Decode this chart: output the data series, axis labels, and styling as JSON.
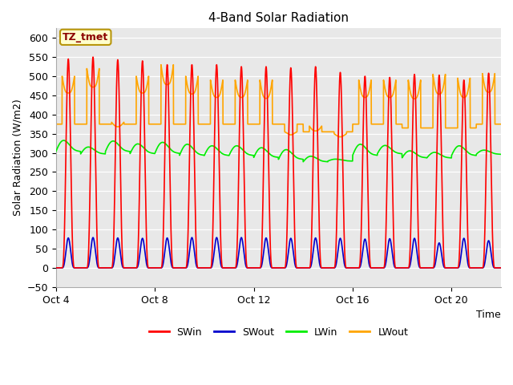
{
  "title": "4-Band Solar Radiation",
  "xlabel": "Time",
  "ylabel": "Solar Radiation (W/m2)",
  "ylim": [
    -50,
    625
  ],
  "yticks": [
    -50,
    0,
    50,
    100,
    150,
    200,
    250,
    300,
    350,
    400,
    450,
    500,
    550,
    600
  ],
  "plot_bg": "#e8e8e8",
  "fig_bg": "#ffffff",
  "annotation_text": "TZ_tmet",
  "annotation_color": "#8B0000",
  "annotation_bg": "#ffffcc",
  "annotation_border": "#b8960b",
  "legend_items": [
    "SWin",
    "SWout",
    "LWin",
    "LWout"
  ],
  "legend_colors": [
    "#ff0000",
    "#0000cc",
    "#00ee00",
    "#ffa500"
  ],
  "title_fontsize": 11,
  "axis_label_fontsize": 9,
  "tick_fontsize": 9,
  "legend_fontsize": 9,
  "num_days": 18,
  "pts_per_day": 288,
  "SWin_peaks": [
    545,
    550,
    543,
    540,
    530,
    530,
    530,
    525,
    525,
    522,
    525,
    510,
    500,
    497,
    505,
    503,
    490,
    508
  ],
  "SWout_peaks": [
    78,
    79,
    78,
    77,
    78,
    79,
    79,
    79,
    78,
    77,
    78,
    77,
    75,
    76,
    77,
    65,
    77,
    71
  ],
  "LWin_peaks": [
    340,
    320,
    338,
    330,
    335,
    330,
    325,
    325,
    320,
    315,
    295,
    285,
    330,
    325,
    310,
    305,
    325,
    310
  ],
  "LWin_night": [
    300,
    295,
    300,
    295,
    295,
    290,
    290,
    290,
    285,
    280,
    275,
    278,
    290,
    295,
    285,
    285,
    290,
    295
  ],
  "LWout_night": [
    375,
    375,
    375,
    375,
    375,
    375,
    375,
    375,
    375,
    375,
    355,
    355,
    375,
    375,
    365,
    365,
    365,
    375
  ],
  "LWout_peaks": [
    500,
    520,
    380,
    500,
    530,
    500,
    490,
    490,
    490,
    355,
    370,
    350,
    490,
    490,
    490,
    505,
    495,
    507
  ],
  "LWout_min": [
    375,
    380,
    355,
    375,
    380,
    370,
    365,
    365,
    360,
    345,
    340,
    335,
    365,
    365,
    355,
    360,
    355,
    370
  ]
}
